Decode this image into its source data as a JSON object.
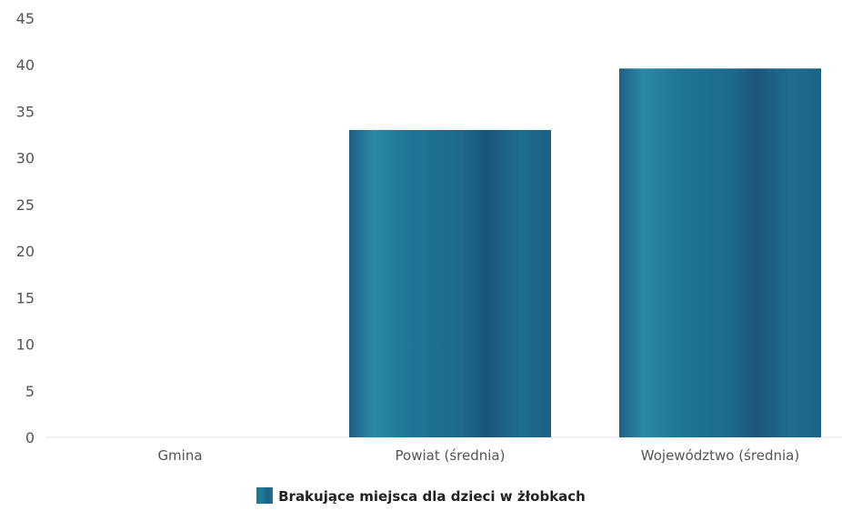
{
  "chart_data": {
    "type": "bar",
    "categories": [
      "Gmina",
      "Powiat (średnia)",
      "Województwo (średnia)"
    ],
    "series": [
      {
        "name": "Brakujące miejsca dla dzieci w żłobkach",
        "values": [
          0,
          33,
          39.6
        ]
      }
    ],
    "ylim": [
      0,
      45
    ],
    "yticks": [
      "0",
      "5",
      "10",
      "15",
      "20",
      "25",
      "30",
      "35",
      "40",
      "45"
    ],
    "grid": false,
    "legend_position": "bottom",
    "colors": {
      "bar": "#1f6f8f",
      "bar_dark": "#1b5a7e",
      "bar_light": "#2b87a3"
    }
  }
}
